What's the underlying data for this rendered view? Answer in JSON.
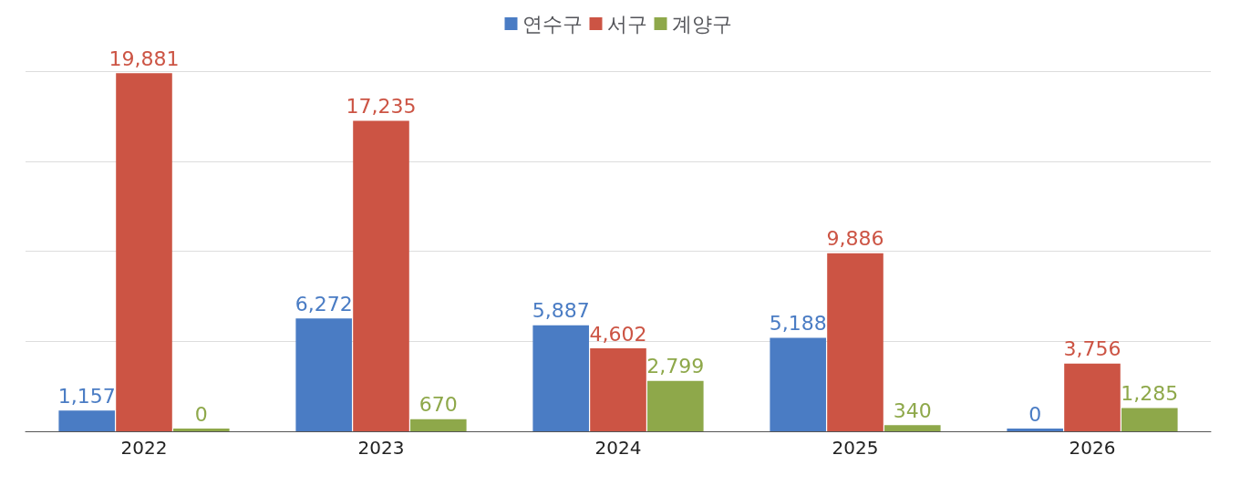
{
  "chart_data": {
    "type": "bar",
    "categories": [
      "2022",
      "2023",
      "2024",
      "2025",
      "2026"
    ],
    "series": [
      {
        "name": "연수구",
        "color": "#4a7cc4",
        "values": [
          1157,
          6272,
          5887,
          5188,
          0
        ],
        "value_labels": [
          "1,157",
          "6,272",
          "5,887",
          "5,188",
          "0"
        ]
      },
      {
        "name": "서구",
        "color": "#cc5444",
        "values": [
          19881,
          17235,
          4602,
          9886,
          3756
        ],
        "value_labels": [
          "19,881",
          "17,235",
          "4,602",
          "9,886",
          "3,756"
        ]
      },
      {
        "name": "계양구",
        "color": "#8ea84a",
        "values": [
          0,
          670,
          2799,
          340,
          1285
        ],
        "value_labels": [
          "0",
          "670",
          "2,799",
          "340",
          "1,285"
        ]
      }
    ],
    "ylim": [
      0,
      20000
    ],
    "yticks": [
      {
        "value": 5000,
        "label": null
      },
      {
        "value": 10000,
        "label": null
      },
      {
        "value": 15000,
        "label": null
      },
      {
        "value": 20000,
        "label": null
      }
    ],
    "tick_labels": "x",
    "grid": "y",
    "legend": "top"
  }
}
